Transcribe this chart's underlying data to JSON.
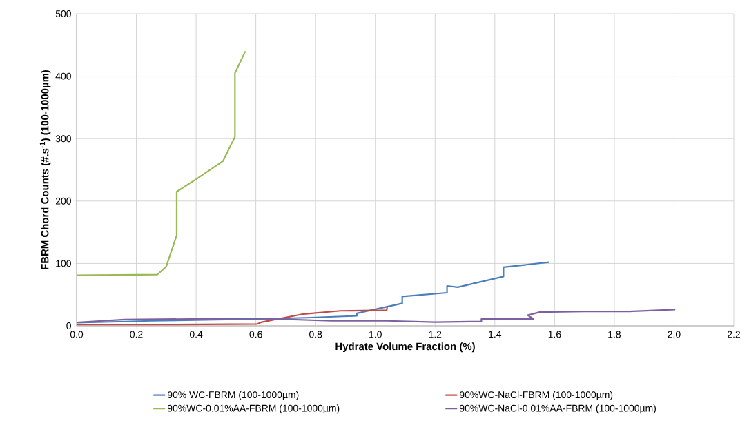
{
  "chart_data": {
    "type": "line",
    "xlabel": "Hydrate Volume Fraction (%)",
    "ylabel": "FBRM Chord Counts (#.s$^{-1}$) (100-1000µm)",
    "xlim": [
      0,
      2.2
    ],
    "ylim": [
      0,
      500
    ],
    "xticks": [
      {
        "value": 0,
        "label": "0.0"
      },
      {
        "value": 0.2,
        "label": "0.2"
      },
      {
        "value": 0.4,
        "label": "0.4"
      },
      {
        "value": 0.6,
        "label": "0.6"
      },
      {
        "value": 0.8,
        "label": "0.8"
      },
      {
        "value": 1.0,
        "label": "1.0"
      },
      {
        "value": 1.2,
        "label": "1.2"
      },
      {
        "value": 1.4,
        "label": "1.4"
      },
      {
        "value": 1.6,
        "label": "1.6"
      },
      {
        "value": 1.8,
        "label": "1.8"
      },
      {
        "value": 2.0,
        "label": "2.0"
      },
      {
        "value": 2.2,
        "label": "2.2"
      }
    ],
    "yticks": [
      0,
      100,
      200,
      300,
      400,
      500
    ],
    "grid": true,
    "legend": "bottom",
    "marker": "none",
    "line_style": "solid",
    "series": [
      {
        "name": "90% WC-FBRM (100-1000µm)",
        "color": "#4a7ebb",
        "x": [
          0,
          0.25,
          0.6,
          0.77,
          0.938,
          0.938,
          1.09,
          1.09,
          1.24,
          1.24,
          1.276,
          1.429,
          1.429,
          1.582
        ],
        "values": [
          5,
          8,
          11,
          13,
          16,
          20,
          36,
          47,
          53,
          64,
          62,
          79,
          94,
          102
        ]
      },
      {
        "name": "90%WC-NaCl-FBRM (100-1000µm)",
        "color": "#be4b48",
        "x": [
          0,
          0.3,
          0.605,
          0.62,
          0.76,
          0.883,
          1.038,
          1.04
        ],
        "values": [
          2,
          2,
          3,
          6,
          19,
          24,
          25,
          32
        ]
      },
      {
        "name": "90%WC-0.01%AA-FBRM (100-1000µm)",
        "color": "#98b954",
        "x": [
          0,
          0.27,
          0.3,
          0.335,
          0.335,
          0.4,
          0.49,
          0.53,
          0.53,
          0.565
        ],
        "values": [
          81,
          82,
          95,
          145,
          215,
          235,
          264,
          303,
          405,
          440
        ]
      },
      {
        "name": "90%WC-NaCl-0.01%AA-FBRM (100-1000µm)",
        "color": "#7d60a0",
        "x": [
          0,
          0.16,
          0.6,
          0.853,
          1.04,
          1.2,
          1.355,
          1.355,
          1.53,
          1.51,
          1.55,
          1.7,
          1.85,
          2.004
        ],
        "values": [
          5.5,
          10,
          12,
          8,
          8,
          6,
          7,
          11,
          11,
          17,
          22,
          23,
          23,
          26
        ]
      }
    ]
  }
}
